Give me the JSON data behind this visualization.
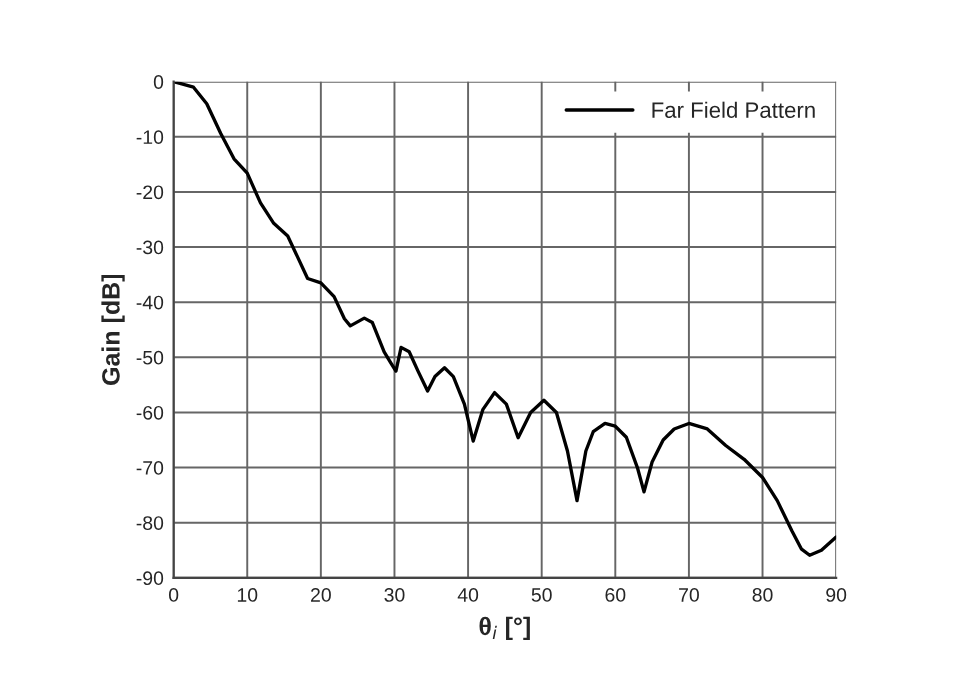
{
  "chart_data": {
    "type": "line",
    "xlabel": "θ$_{i}$ [°]",
    "ylabel": "Gain [dB]",
    "xlim": [
      0,
      90
    ],
    "xticks": [
      0,
      10,
      20,
      30,
      40,
      50,
      60,
      70,
      80,
      90
    ],
    "ylim": [
      -90,
      0
    ],
    "yticks": [
      -90,
      -80,
      -70,
      -60,
      -50,
      -40,
      -30,
      -20,
      -10,
      0
    ],
    "grid": true,
    "legend": "top right",
    "marker": "none",
    "line_style": "solid",
    "series": [
      {
        "name": "Far Field Pattern",
        "color": "#000000",
        "x": [
          0,
          2.7,
          4.5,
          6.4,
          8.2,
          10,
          11.8,
          13.6,
          15.5,
          16.8,
          18.2,
          20,
          21.8,
          23.2,
          24,
          25.9,
          27,
          28.6,
          29.5,
          30.2,
          30.9,
          32,
          33.2,
          34.5,
          35.5,
          36.8,
          38,
          39.5,
          40.7,
          42,
          43.6,
          45.2,
          46.8,
          48.5,
          50.3,
          52,
          53.5,
          54.8,
          56,
          57,
          58.6,
          60,
          61.5,
          63,
          63.9,
          65,
          66.5,
          68,
          70,
          72.5,
          75,
          77.5,
          80,
          82,
          84,
          85.3,
          86.4,
          88,
          90
        ],
        "values": [
          0,
          -1,
          -4,
          -9.4,
          -14,
          -16.6,
          -22,
          -25.7,
          -28,
          -31.7,
          -35.7,
          -36.5,
          -39,
          -43,
          -44.3,
          -42.9,
          -43.7,
          -49,
          -51,
          -52.5,
          -48.2,
          -49,
          -52.5,
          -56.1,
          -53.5,
          -51.9,
          -53.5,
          -58.5,
          -65.2,
          -59.5,
          -56.4,
          -58.5,
          -64.6,
          -60,
          -57.8,
          -60,
          -67,
          -76,
          -67,
          -63.5,
          -62,
          -62.5,
          -64.5,
          -70,
          -74.4,
          -69,
          -65,
          -63,
          -62,
          -63,
          -66,
          -68.5,
          -71.8,
          -76,
          -81.5,
          -84.8,
          -85.9,
          -85,
          -82.6
        ]
      }
    ]
  }
}
